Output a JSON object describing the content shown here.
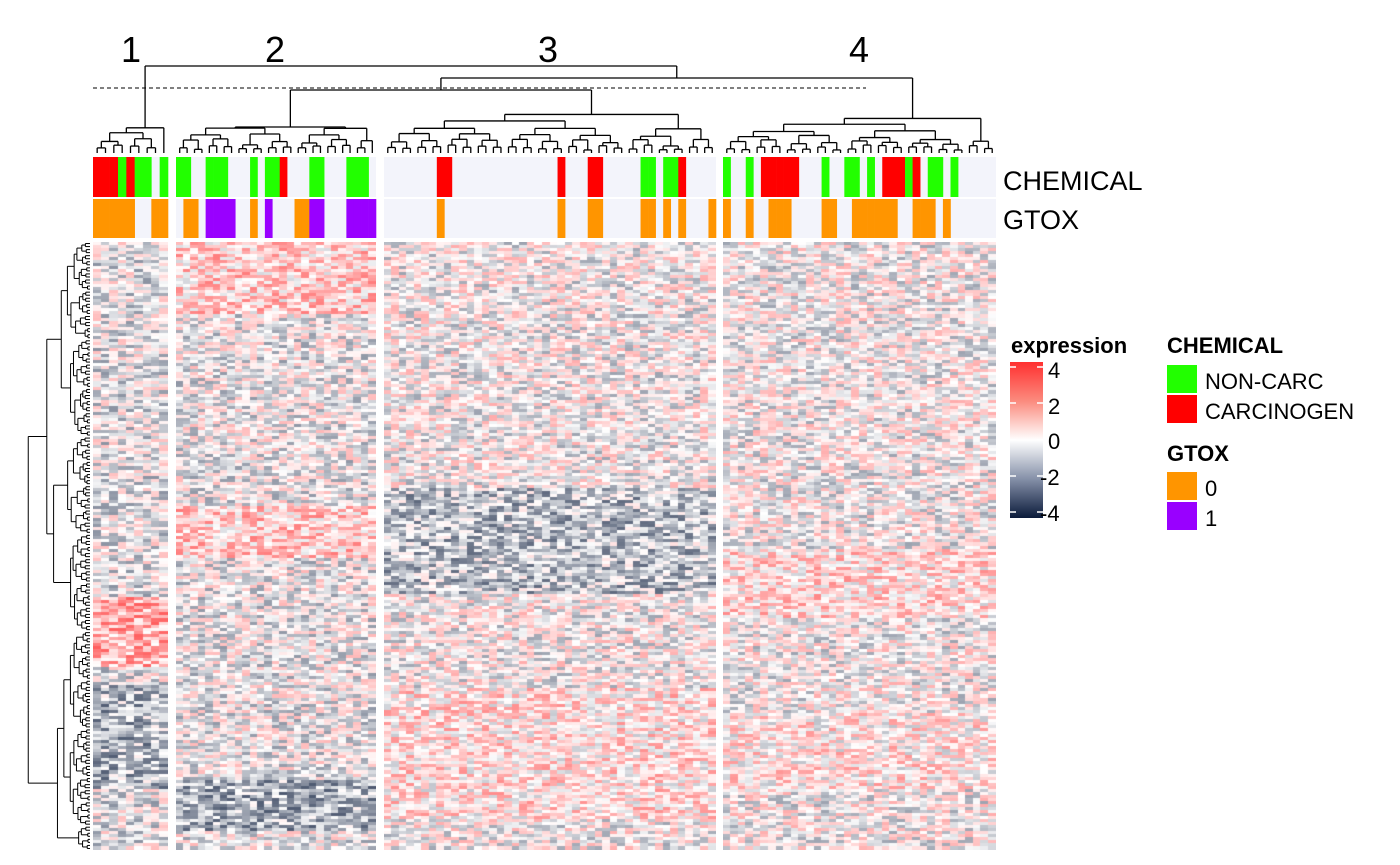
{
  "chart_data": {
    "type": "heatmap",
    "title": "",
    "clusters": [
      "1",
      "2",
      "3",
      "4"
    ],
    "cluster_sample_counts": [
      9,
      27,
      44,
      36
    ],
    "annotation_tracks": [
      "CHEMICAL",
      "GTOX"
    ],
    "legend": {
      "expression": {
        "title": "expression",
        "ticks": [
          "4",
          "2",
          "0",
          "-2",
          "-4"
        ],
        "range": [
          -4,
          4
        ],
        "colors": {
          "low": "#0a1a3a",
          "mid": "#ffffff",
          "high": "#ff3030"
        }
      },
      "chemical": {
        "title": "CHEMICAL",
        "entries": [
          {
            "label": "NON-CARC",
            "color": "#22ff00"
          },
          {
            "label": "CARCINOGEN",
            "color": "#ff0000"
          }
        ]
      },
      "gtox": {
        "title": "GTOX",
        "entries": [
          {
            "label": "0",
            "color": "#ff9500"
          },
          {
            "label": "1",
            "color": "#9900ff"
          }
        ]
      }
    },
    "chemical_annotation": [
      "CARCINOGEN",
      "CARCINOGEN",
      "CARCINOGEN",
      "NON-CARC",
      "CARCINOGEN",
      "NON-CARC",
      "NON-CARC",
      null,
      "NON-CARC",
      "NON-CARC",
      "NON-CARC",
      null,
      null,
      "NON-CARC",
      "NON-CARC",
      "NON-CARC",
      null,
      null,
      null,
      "NON-CARC",
      null,
      "NON-CARC",
      "NON-CARC",
      "CARCINOGEN",
      null,
      null,
      null,
      "NON-CARC",
      "NON-CARC",
      null,
      null,
      null,
      "NON-CARC",
      "NON-CARC",
      "NON-CARC",
      null,
      null,
      null,
      null,
      null,
      null,
      null,
      null,
      "CARCINOGEN",
      "CARCINOGEN",
      null,
      null,
      null,
      null,
      null,
      null,
      null,
      null,
      null,
      null,
      null,
      null,
      null,
      null,
      "CARCINOGEN",
      null,
      null,
      null,
      "CARCINOGEN",
      "CARCINOGEN",
      null,
      null,
      null,
      null,
      null,
      "NON-CARC",
      "NON-CARC",
      null,
      "NON-CARC",
      "NON-CARC",
      "CARCINOGEN",
      null,
      null,
      null,
      null,
      "NON-CARC",
      null,
      null,
      "NON-CARC",
      null,
      "CARCINOGEN",
      "CARCINOGEN",
      "CARCINOGEN",
      "CARCINOGEN",
      "CARCINOGEN",
      null,
      null,
      null,
      "NON-CARC",
      null,
      null,
      "NON-CARC",
      "NON-CARC",
      null,
      "NON-CARC",
      null,
      "CARCINOGEN",
      "CARCINOGEN",
      "CARCINOGEN",
      "NON-CARC",
      "CARCINOGEN",
      null,
      "NON-CARC",
      "NON-CARC",
      null,
      "NON-CARC",
      null,
      null,
      null,
      null,
      null
    ],
    "gtox_annotation": [
      "0",
      "0",
      "0",
      "0",
      "0",
      null,
      null,
      "0",
      "0",
      null,
      "0",
      "0",
      null,
      "1",
      "1",
      "1",
      "1",
      null,
      null,
      "0",
      null,
      "1",
      null,
      null,
      null,
      "0",
      "0",
      "1",
      "1",
      null,
      null,
      null,
      "1",
      "1",
      "1",
      "1",
      null,
      null,
      null,
      null,
      null,
      null,
      null,
      "0",
      null,
      null,
      null,
      null,
      null,
      null,
      null,
      null,
      null,
      null,
      null,
      null,
      null,
      null,
      null,
      "0",
      null,
      null,
      null,
      "0",
      "0",
      null,
      null,
      null,
      null,
      null,
      "0",
      "0",
      null,
      "0",
      null,
      "0",
      null,
      null,
      null,
      "0",
      "0",
      null,
      null,
      "0",
      null,
      null,
      "0",
      "0",
      "0",
      null,
      null,
      null,
      null,
      "0",
      "0",
      null,
      null,
      "0",
      "0",
      "0",
      "0",
      "0",
      "0",
      null,
      null,
      "0",
      "0",
      "0",
      null,
      "0",
      null,
      null,
      null,
      null,
      null,
      null
    ],
    "n_gene_rows": 200,
    "column_dendrogram_cut": "dashed line"
  }
}
